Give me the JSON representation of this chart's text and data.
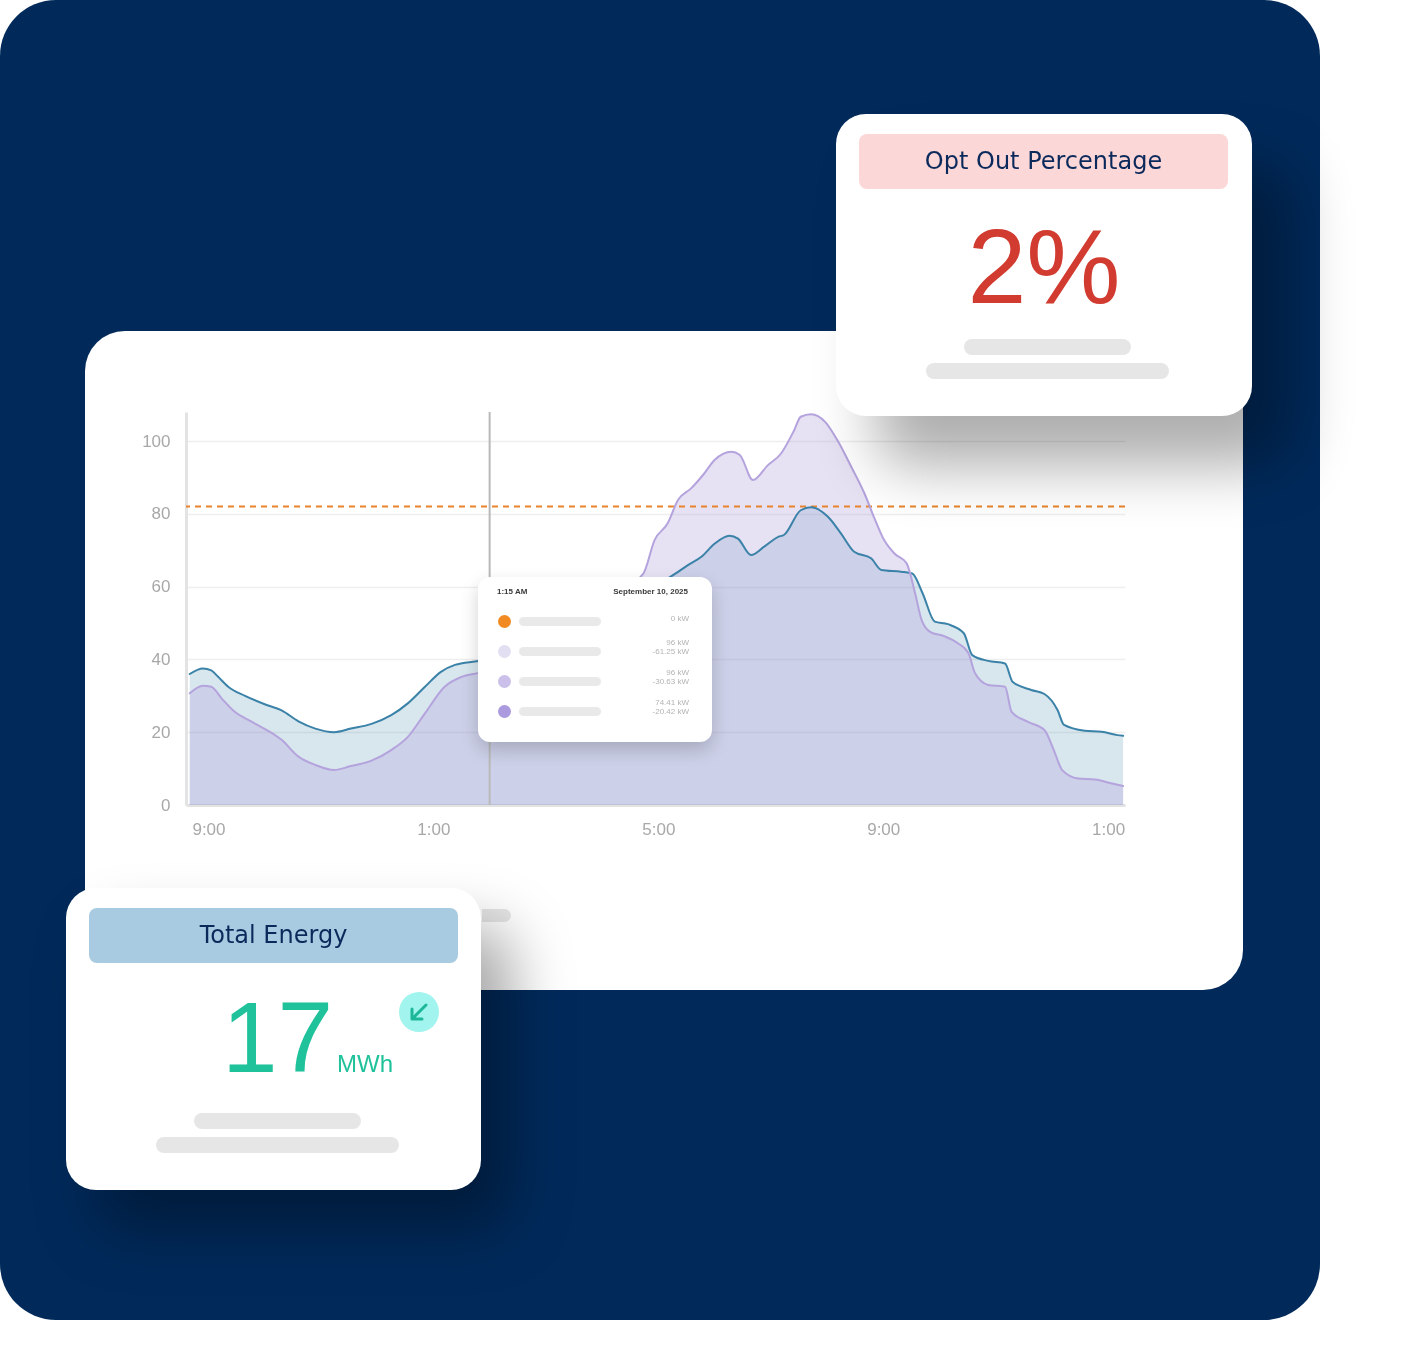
{
  "chart_data": [
    {
      "type": "other",
      "title": "Opt Out Percentage",
      "annotations": [
        "2%"
      ]
    },
    {
      "type": "area",
      "xlim": [
        "2025-09-09T20:36",
        "2025-09-10T13:18"
      ],
      "xticks": [
        {
          "value": "2025-09-09T21:00",
          "label": "9:00"
        },
        {
          "value": "2025-09-10T01:00",
          "label": "1:00"
        },
        {
          "value": "2025-09-10T05:00",
          "label": "5:00"
        },
        {
          "value": "2025-09-10T09:00",
          "label": "9:00"
        },
        {
          "value": "2025-09-10T13:00",
          "label": "1:00"
        }
      ],
      "ylim": [
        0,
        108
      ],
      "yticks": [
        0,
        20,
        40,
        60,
        80,
        100
      ],
      "grid": "y",
      "series": [
        {
          "color": "#3b82a8",
          "x": [
            "2025-09-09T20:40",
            "2025-09-09T20:54",
            "2025-09-09T21:03",
            "2025-09-09T21:10",
            "2025-09-09T21:21",
            "2025-09-09T21:39",
            "2025-09-09T22:00",
            "2025-09-09T22:18",
            "2025-09-09T22:36",
            "2025-09-09T22:54",
            "2025-09-09T23:14",
            "2025-09-09T23:32",
            "2025-09-09T23:54",
            "2025-09-10T00:15",
            "2025-09-10T00:33",
            "2025-09-10T00:51",
            "2025-09-10T01:08",
            "2025-09-10T01:23",
            "2025-09-10T01:48",
            "2025-09-10T05:19",
            "2025-09-10T05:32",
            "2025-09-10T05:46",
            "2025-09-10T06:00",
            "2025-09-10T06:16",
            "2025-09-10T06:25",
            "2025-09-10T06:39",
            "2025-09-10T06:53",
            "2025-09-10T07:08",
            "2025-09-10T07:14",
            "2025-09-10T07:32",
            "2025-09-10T07:43",
            "2025-09-10T08:01",
            "2025-09-10T08:15",
            "2025-09-10T08:29",
            "2025-09-10T08:47",
            "2025-09-10T08:58",
            "2025-09-10T09:19",
            "2025-09-10T09:31",
            "2025-09-10T09:42",
            "2025-09-10T09:55",
            "2025-09-10T10:09",
            "2025-09-10T10:26",
            "2025-09-10T10:35",
            "2025-09-10T10:52",
            "2025-09-10T11:10",
            "2025-09-10T11:18",
            "2025-09-10T11:38",
            "2025-09-10T11:52",
            "2025-09-10T12:06",
            "2025-09-10T12:13",
            "2025-09-10T12:35",
            "2025-09-10T12:53",
            "2025-09-10T13:10",
            "2025-09-10T13:16"
          ],
          "values": [
            36,
            37.5,
            37,
            35.3,
            32.5,
            30,
            27.7,
            26,
            23,
            21,
            20,
            21,
            22.3,
            24.7,
            28,
            32.5,
            36.6,
            38.5,
            39.6,
            63.7,
            66,
            68.2,
            71.8,
            74,
            73.2,
            68.7,
            71,
            73.7,
            74.2,
            81,
            81.8,
            79.2,
            74.6,
            69.6,
            67.8,
            64.6,
            64.1,
            63.6,
            58.2,
            50.4,
            49.7,
            47.2,
            41.2,
            39.6,
            38.9,
            33.9,
            31.6,
            30.5,
            26.1,
            22,
            20.4,
            20.1,
            19.2,
            19
          ]
        },
        {
          "color": "#b4a3dd",
          "x": [
            "2025-09-09T20:40",
            "2025-09-09T20:54",
            "2025-09-09T21:03",
            "2025-09-09T21:14",
            "2025-09-09T21:28",
            "2025-09-09T21:46",
            "2025-09-09T22:18",
            "2025-09-09T22:36",
            "2025-09-09T22:54",
            "2025-09-09T23:14",
            "2025-09-09T23:32",
            "2025-09-09T23:54",
            "2025-09-10T00:15",
            "2025-09-10T00:33",
            "2025-09-10T00:51",
            "2025-09-10T01:12",
            "2025-09-10T01:30",
            "2025-09-10T01:48",
            "2025-09-10T04:44",
            "2025-09-10T04:56",
            "2025-09-10T05:10",
            "2025-09-10T05:21",
            "2025-09-10T05:35",
            "2025-09-10T05:49",
            "2025-09-10T06:00",
            "2025-09-10T06:18",
            "2025-09-10T06:27",
            "2025-09-10T06:41",
            "2025-09-10T06:57",
            "2025-09-10T07:11",
            "2025-09-10T07:25",
            "2025-09-10T07:32",
            "2025-09-10T07:43",
            "2025-09-10T07:58",
            "2025-09-10T08:11",
            "2025-09-10T08:26",
            "2025-09-10T08:40",
            "2025-09-10T08:50",
            "2025-09-10T09:01",
            "2025-09-10T09:12",
            "2025-09-10T09:25",
            "2025-09-10T09:34",
            "2025-09-10T09:41",
            "2025-09-10T09:50",
            "2025-09-10T10:05",
            "2025-09-10T10:20",
            "2025-09-10T10:31",
            "2025-09-10T10:38",
            "2025-09-10T10:52",
            "2025-09-10T11:10",
            "2025-09-10T11:17",
            "2025-09-10T11:34",
            "2025-09-10T11:52",
            "2025-09-10T12:02",
            "2025-09-10T12:11",
            "2025-09-10T12:28",
            "2025-09-10T12:46",
            "2025-09-10T13:03",
            "2025-09-10T13:16"
          ],
          "values": [
            30.7,
            32.8,
            32.5,
            29.3,
            25.6,
            22.9,
            17.9,
            13.3,
            11,
            9.6,
            10.7,
            12.2,
            15.1,
            18.8,
            25.2,
            32.5,
            35.2,
            36.3,
            63.6,
            72.8,
            77.4,
            83.8,
            87,
            91.1,
            94.8,
            97.1,
            96.2,
            89.3,
            93.4,
            96.6,
            103,
            106.7,
            107.4,
            105.3,
            100.3,
            92.9,
            85.6,
            79.2,
            72.8,
            69.1,
            66.4,
            58.2,
            50.8,
            47.6,
            46.4,
            44.4,
            41.7,
            36.2,
            33,
            32.5,
            25.6,
            22.9,
            20.6,
            15.1,
            9.6,
            7.3,
            7,
            6,
            5.2
          ]
        }
      ],
      "ref_lines": [
        {
          "axis": "y",
          "value": 82,
          "color": "#e8842c",
          "line_style": "dashed"
        },
        {
          "axis": "x",
          "value": "2025-09-10T02:00",
          "color": "#b9b9b9",
          "line_style": "solid"
        }
      ],
      "annotations": [
        "1:15 AM",
        "September 10, 2025",
        "0 kW",
        "96 kW",
        "-61.25 kW",
        "96 kW",
        "-30.63 kW",
        "74.41 kW",
        "-20.42 kW"
      ]
    },
    {
      "type": "other",
      "title": "Total Energy",
      "annotations": [
        "17",
        "MWh"
      ]
    }
  ]
}
